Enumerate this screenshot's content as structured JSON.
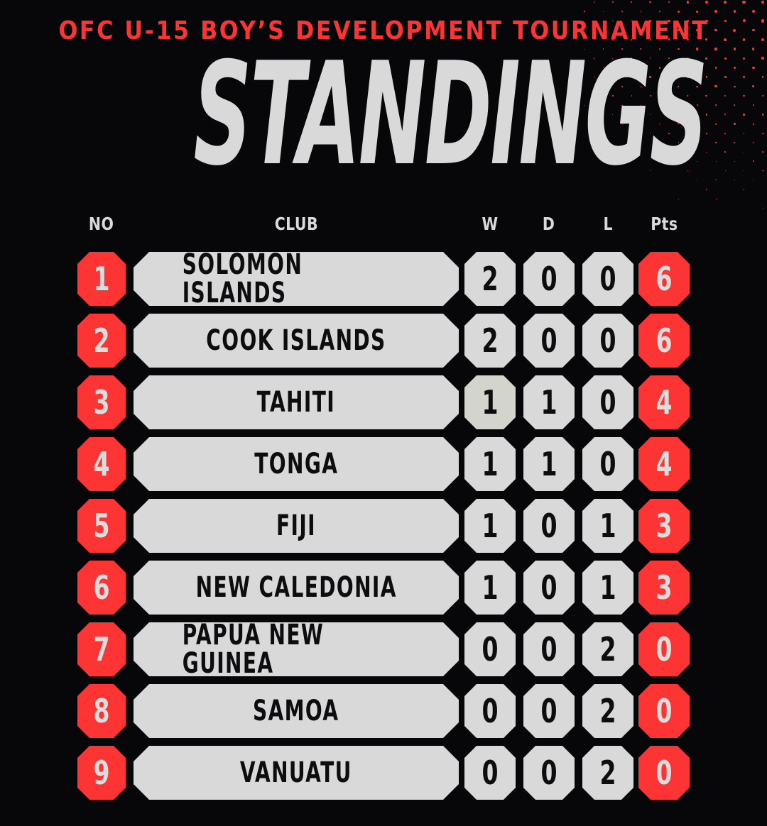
{
  "header": {
    "tournament": "OFC U-15 BOY’S DEVELOPMENT TOURNAMENT",
    "title": "STANDINGS"
  },
  "table": {
    "columns": [
      "NO",
      "CLUB",
      "W",
      "D",
      "L",
      "Pts"
    ],
    "rows": [
      {
        "no": "1",
        "club": "SOLOMON ISLANDS",
        "w": "2",
        "d": "0",
        "l": "0",
        "pts": "6",
        "w_tint": false
      },
      {
        "no": "2",
        "club": "COOK ISLANDS",
        "w": "2",
        "d": "0",
        "l": "0",
        "pts": "6",
        "w_tint": false
      },
      {
        "no": "3",
        "club": "TAHITI",
        "w": "1",
        "d": "1",
        "l": "0",
        "pts": "4",
        "w_tint": true
      },
      {
        "no": "4",
        "club": "TONGA",
        "w": "1",
        "d": "1",
        "l": "0",
        "pts": "4",
        "w_tint": false
      },
      {
        "no": "5",
        "club": "FIJI",
        "w": "1",
        "d": "0",
        "l": "1",
        "pts": "3",
        "w_tint": false
      },
      {
        "no": "6",
        "club": "NEW CALEDONIA",
        "w": "1",
        "d": "0",
        "l": "1",
        "pts": "3",
        "w_tint": false
      },
      {
        "no": "7",
        "club": "PAPUA NEW GUINEA",
        "w": "0",
        "d": "0",
        "l": "2",
        "pts": "0",
        "w_tint": false
      },
      {
        "no": "8",
        "club": "SAMOA",
        "w": "0",
        "d": "0",
        "l": "2",
        "pts": "0",
        "w_tint": false
      },
      {
        "no": "9",
        "club": "VANUATU",
        "w": "0",
        "d": "0",
        "l": "2",
        "pts": "0",
        "w_tint": false
      }
    ]
  },
  "colors": {
    "background": "#07070a",
    "accent_red": "#fc3434",
    "pill_gray": "#d9d9d9",
    "pill_gray_tint": "#d3d5cc",
    "title_gray": "#d9d9d9",
    "text_dark": "#0d0d10",
    "text_light": "#dcdcdc"
  }
}
